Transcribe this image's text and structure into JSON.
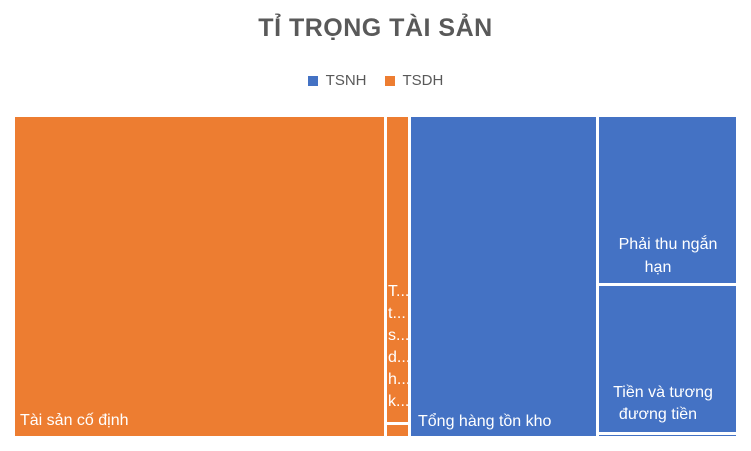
{
  "chart_data": {
    "type": "treemap",
    "title": "TỈ TRỌNG TÀI SẢN",
    "legend": [
      {
        "name": "TSNH",
        "color": "#4472C4"
      },
      {
        "name": "TSDH",
        "color": "#ED7D31"
      }
    ],
    "legend_position": "top",
    "groups": [
      {
        "name": "TSDH",
        "color": "#ED7D31",
        "items": [
          {
            "label": "Tài sản cố định",
            "value": 58.0
          },
          {
            "label": "T…",
            "value": 3.3
          },
          {
            "label": "",
            "value": 0.2
          }
        ],
        "truncated_label_lines": [
          "T...",
          "t...",
          "s...",
          "d...",
          "h...",
          "k..."
        ]
      },
      {
        "name": "TSNH",
        "color": "#4472C4",
        "items": [
          {
            "label": "Tổng hàng tồn kho",
            "value": 28.0
          },
          {
            "label": "Phải thu ngắn hạn",
            "value": 10.0
          },
          {
            "label": "Tiền và tương đương tiền",
            "value": 10.0
          },
          {
            "label": "",
            "value": 0.5
          }
        ]
      }
    ],
    "tile_labels": {
      "tai_san_co_dinh": "Tài sản cố định",
      "tong_hang_ton_kho": "Tổng hàng tồn kho",
      "phai_thu_line1": "Phải thu ngắn",
      "phai_thu_line2": "hạn",
      "tien_line1": "Tiền và tương",
      "tien_line2": "đương tiền"
    }
  }
}
